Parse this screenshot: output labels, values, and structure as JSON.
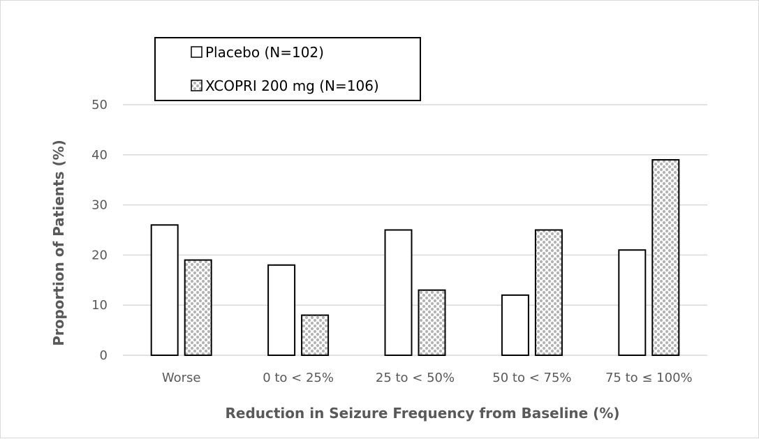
{
  "chart_data": {
    "type": "bar",
    "title": "",
    "xlabel": "Reduction in Seizure Frequency from Baseline (%)",
    "ylabel": "Proportion of Patients (%)",
    "categories": [
      "Worse",
      "0 to < 25%",
      "25 to < 50%",
      "50 to < 75%",
      "75 to ≤ 100%"
    ],
    "series": [
      {
        "name": "Placebo (N=102)",
        "values": [
          26,
          18,
          25,
          12,
          21
        ],
        "fill": "#ffffff",
        "pattern": "none"
      },
      {
        "name": "XCOPRI 200 mg (N=106)",
        "values": [
          19,
          8,
          13,
          25,
          39
        ],
        "fill": "#bfbfbf",
        "pattern": "dotted-grid"
      }
    ],
    "ylim": [
      0,
      50
    ],
    "yticks": [
      0,
      10,
      20,
      30,
      40,
      50
    ],
    "grid": true,
    "legend": "top-left",
    "colors": {
      "gridline": "#d9d9d9",
      "axis_text": "#595959",
      "bar_stroke": "#000000"
    }
  }
}
